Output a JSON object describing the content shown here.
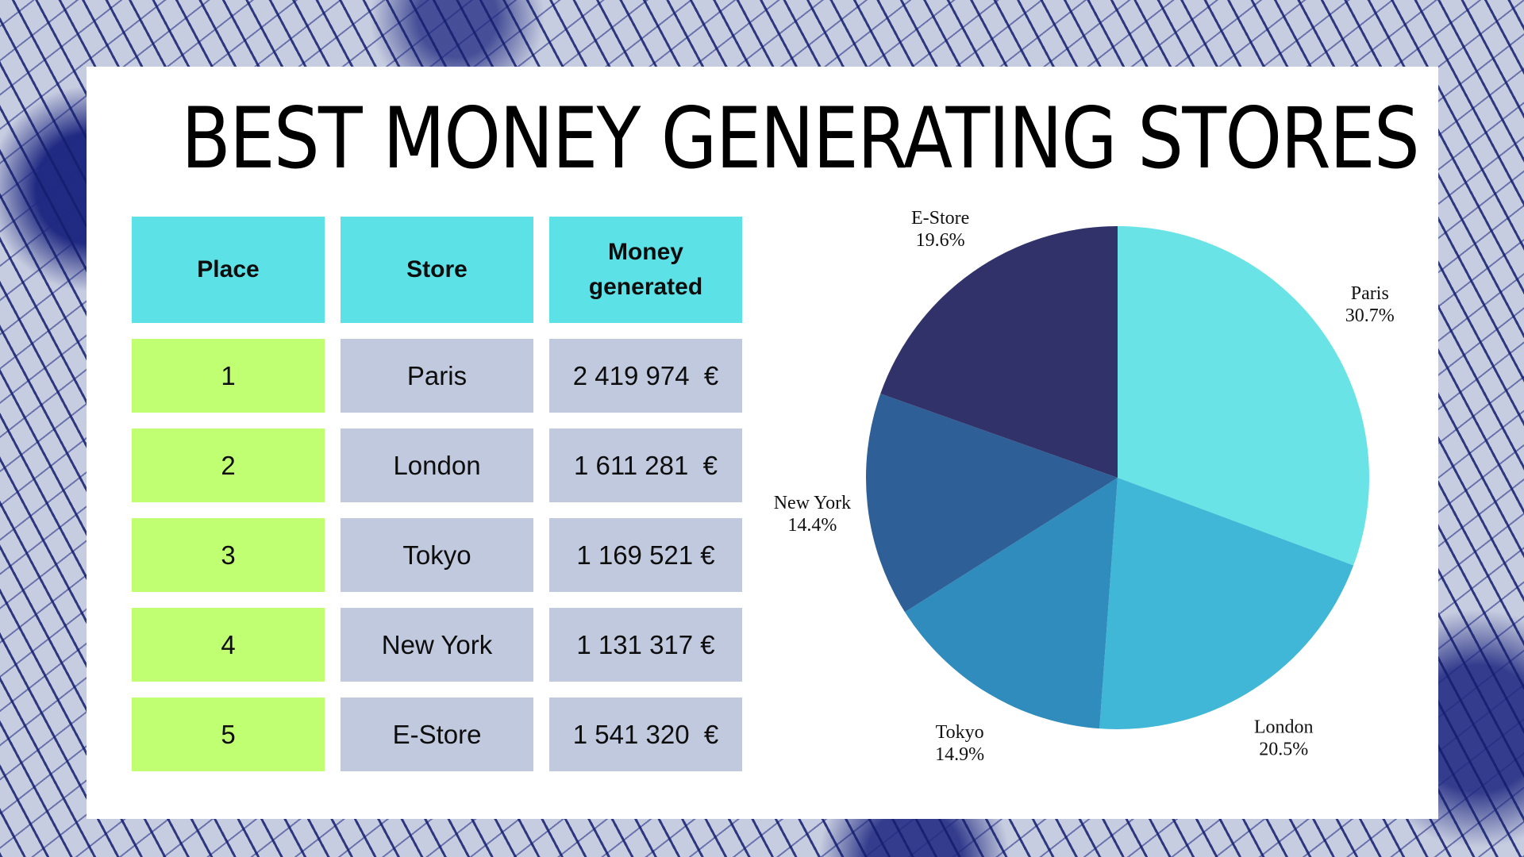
{
  "title": "BEST MONEY GENERATING STORES",
  "table": {
    "headers": [
      "Place",
      "Store",
      "Money generated"
    ],
    "rows": [
      {
        "place": "1",
        "store": "Paris",
        "money": "2 419 974  €"
      },
      {
        "place": "2",
        "store": "London",
        "money": "1 611 281  €"
      },
      {
        "place": "3",
        "store": "Tokyo",
        "money": "1 169 521 €"
      },
      {
        "place": "4",
        "store": "New York",
        "money": "1 131 317 €"
      },
      {
        "place": "5",
        "store": "E-Store",
        "money": "1 541 320  €"
      }
    ]
  },
  "colors": {
    "header_bg": "#5ce1e6",
    "place_bg": "#c1ff72",
    "cell_bg": "#c1c9de"
  },
  "chart_data": {
    "type": "pie",
    "title": "",
    "slices": [
      {
        "label": "Paris",
        "percent_label": "30.7%",
        "value": 30.7,
        "color": "#69e3e6"
      },
      {
        "label": "London",
        "percent_label": "20.5%",
        "value": 20.5,
        "color": "#40b7d6"
      },
      {
        "label": "Tokyo",
        "percent_label": "14.9%",
        "value": 14.9,
        "color": "#2f8cbc"
      },
      {
        "label": "New York",
        "percent_label": "14.4%",
        "value": 14.4,
        "color": "#2e5f96"
      },
      {
        "label": "E-Store",
        "percent_label": "19.6%",
        "value": 19.6,
        "color": "#31326a"
      }
    ],
    "start_angle": "12 o'clock",
    "direction": "clockwise",
    "legend": "none"
  }
}
